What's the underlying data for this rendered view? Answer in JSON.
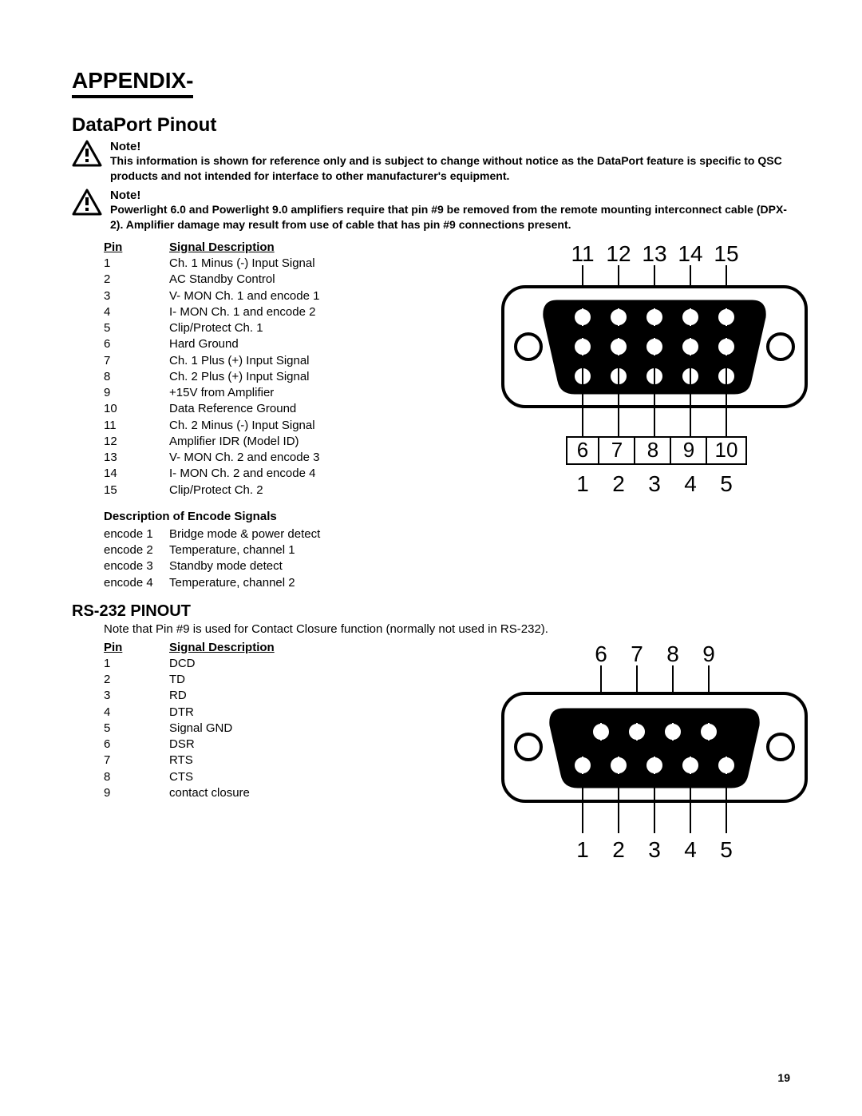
{
  "page_number": "19",
  "appendix_heading": "APPENDIX-",
  "dataport_heading": "DataPort Pinout",
  "note1_title": "Note!",
  "note1_body": "This information is shown for reference only and is subject to change without notice as the DataPort feature is specific to QSC products and not intended for interface to other manufacturer's equipment.",
  "note2_title": "Note!",
  "note2_body": "Powerlight 6.0 and Powerlight 9.0 amplifiers require that pin #9 be removed from the remote mounting interconnect cable (DPX-2). Amplifier damage may result from use of cable that has pin #9 connections present.",
  "pin_header_pin": "Pin",
  "pin_header_desc": "Signal Description",
  "dataport_pins": [
    {
      "pin": "1",
      "desc": "Ch. 1 Minus (-) Input Signal"
    },
    {
      "pin": "2",
      "desc": "AC Standby Control"
    },
    {
      "pin": "3",
      "desc": "V- MON Ch. 1 and encode 1"
    },
    {
      "pin": "4",
      "desc": "I- MON Ch. 1 and encode 2"
    },
    {
      "pin": "5",
      "desc": "Clip/Protect Ch. 1"
    },
    {
      "pin": "6",
      "desc": "Hard Ground"
    },
    {
      "pin": "7",
      "desc": "Ch. 1 Plus (+) Input Signal"
    },
    {
      "pin": "8",
      "desc": "Ch. 2 Plus (+) Input Signal"
    },
    {
      "pin": "9",
      "desc": "+15V from Amplifier"
    },
    {
      "pin": "10",
      "desc": "Data Reference Ground"
    },
    {
      "pin": "11",
      "desc": "Ch. 2 Minus (-) Input Signal"
    },
    {
      "pin": "12",
      "desc": "Amplifier IDR (Model ID)"
    },
    {
      "pin": "13",
      "desc": "V- MON Ch. 2 and encode 3"
    },
    {
      "pin": "14",
      "desc": "I- MON Ch. 2 and encode 4"
    },
    {
      "pin": "15",
      "desc": "Clip/Protect Ch. 2"
    }
  ],
  "encode_title": "Description of  Encode Signals",
  "encode_rows": [
    {
      "k": "encode 1",
      "v": "Bridge mode & power detect"
    },
    {
      "k": "encode 2",
      "v": "Temperature, channel 1"
    },
    {
      "k": "encode 3",
      "v": "Standby mode detect"
    },
    {
      "k": "encode 4",
      "v": "Temperature, channel 2"
    }
  ],
  "rs232_heading": "RS-232 PINOUT",
  "rs232_note": "Note that Pin #9 is used for Contact Closure function (normally not used in RS-232).",
  "rs232_pins": [
    {
      "pin": "1",
      "desc": "DCD"
    },
    {
      "pin": "2",
      "desc": "TD"
    },
    {
      "pin": "3",
      "desc": "RD"
    },
    {
      "pin": "4",
      "desc": "DTR"
    },
    {
      "pin": "5",
      "desc": "Signal GND"
    },
    {
      "pin": "6",
      "desc": "DSR"
    },
    {
      "pin": "7",
      "desc": "RTS"
    },
    {
      "pin": "8",
      "desc": "CTS"
    },
    {
      "pin": "9",
      "desc": "contact closure"
    }
  ],
  "db15_labels_top": [
    "11",
    "12",
    "13",
    "14",
    "15"
  ],
  "db15_labels_mid": [
    "6",
    "7",
    "8",
    "9",
    "10"
  ],
  "db15_labels_bot": [
    "1",
    "2",
    "3",
    "4",
    "5"
  ],
  "db9_labels_top": [
    "6",
    "7",
    "8",
    "9"
  ],
  "db9_labels_bot": [
    "1",
    "2",
    "3",
    "4",
    "5"
  ],
  "colors": {
    "stroke": "#000000",
    "fill_black": "#000000",
    "fill_white": "#ffffff"
  },
  "diagram": {
    "font_family": "Arial",
    "label_fontsize_large": 28,
    "label_fontsize_med": 26,
    "pin_radius": 11,
    "screw_radius": 16,
    "stroke_width": 4
  }
}
